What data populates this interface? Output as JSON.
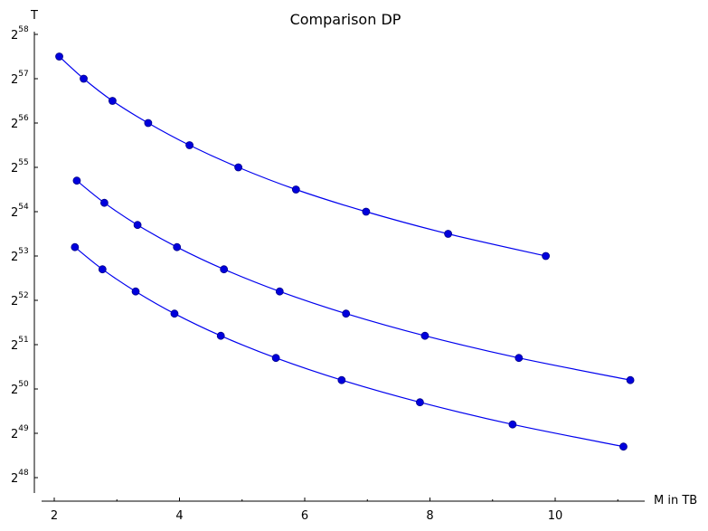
{
  "chart_data": {
    "type": "line",
    "title": "Comparison DP",
    "xlabel": "M in TB",
    "ylabel": "T",
    "xlim": [
      1.85,
      11.4
    ],
    "ylim": [
      47.6,
      58.1
    ],
    "y_scale": "log2",
    "x_ticks": [
      2,
      4,
      6,
      8,
      10
    ],
    "y_ticks": [
      48,
      49,
      50,
      51,
      52,
      53,
      54,
      55,
      56,
      57,
      58
    ],
    "y_tick_base": "2",
    "grid": false,
    "legend": "none",
    "color": "#0000ee",
    "series": [
      {
        "x": [
          2.08,
          2.47,
          2.93,
          3.5,
          4.16,
          4.94,
          5.86,
          6.98,
          8.29,
          9.85
        ],
        "y": [
          57.5,
          57.0,
          56.5,
          56.0,
          55.5,
          55.0,
          54.5,
          54.0,
          53.5,
          53.0
        ]
      },
      {
        "x": [
          2.36,
          2.8,
          3.33,
          3.96,
          4.71,
          5.6,
          6.66,
          7.92,
          9.42,
          11.2
        ],
        "y": [
          54.7,
          54.2,
          53.7,
          53.2,
          52.7,
          52.2,
          51.7,
          51.2,
          50.7,
          50.2
        ]
      },
      {
        "x": [
          2.33,
          2.77,
          3.3,
          3.92,
          4.66,
          5.54,
          6.59,
          7.84,
          9.32,
          11.09
        ],
        "y": [
          53.2,
          52.7,
          52.2,
          51.7,
          51.2,
          50.7,
          50.2,
          49.7,
          49.2,
          48.7
        ]
      }
    ]
  }
}
